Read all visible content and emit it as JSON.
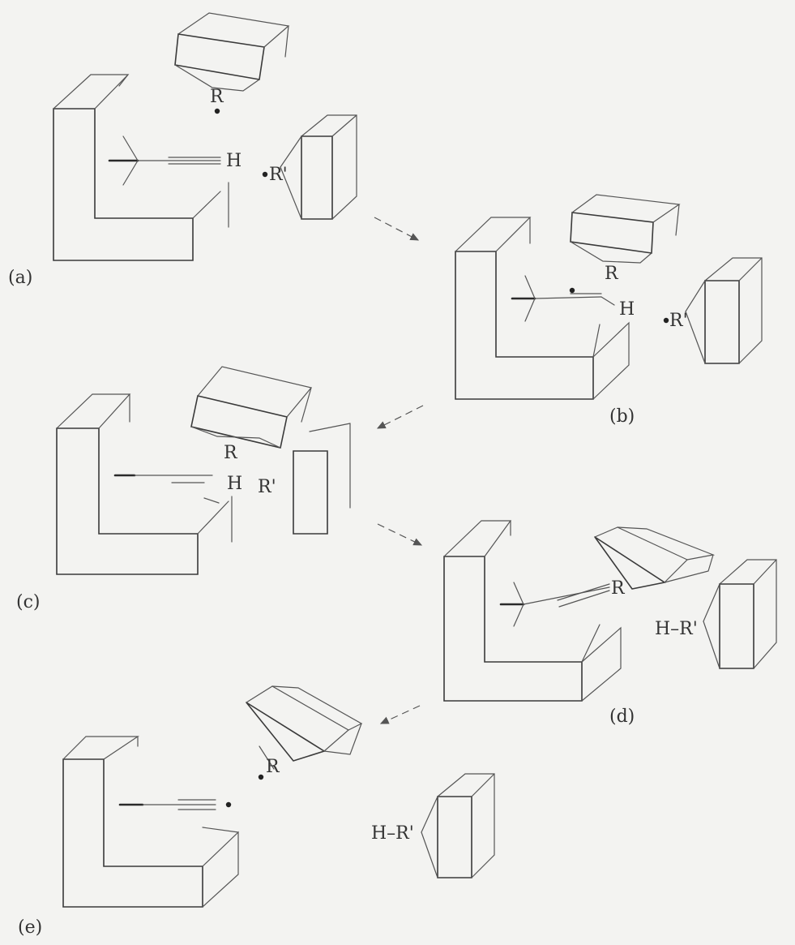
{
  "panels": [
    {
      "label": "(a)",
      "atoms": {
        "R": "R",
        "R_prime": "R'",
        "H": "H"
      }
    },
    {
      "label": "(b)",
      "atoms": {
        "R": "R",
        "R_prime": "R'",
        "H": "H"
      }
    },
    {
      "label": "(c)",
      "atoms": {
        "R": "R",
        "R_prime": "R'",
        "H": "H"
      }
    },
    {
      "label": "(d)",
      "atoms": {
        "R": "R",
        "HR_prime": "H–R'"
      }
    },
    {
      "label": "(e)",
      "atoms": {
        "R": "R",
        "HR_prime": "H–R'"
      }
    }
  ]
}
